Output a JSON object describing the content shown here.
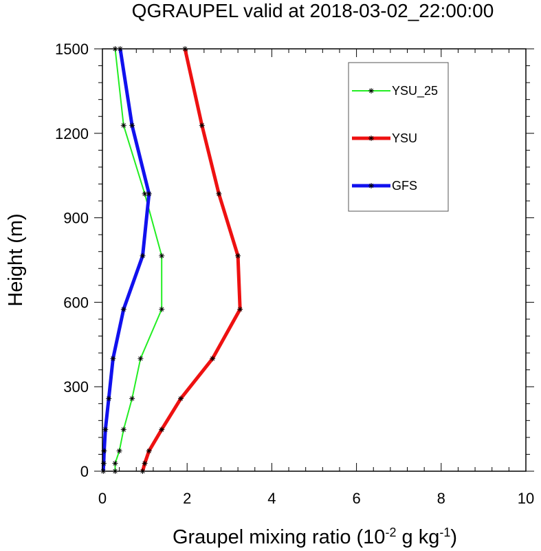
{
  "chart_data": {
    "type": "line",
    "title": "QGRAUPEL valid at 2018-03-02_22:00:00",
    "xlabel_main": "Graupel mixing ratio (10",
    "xlabel_exp1": "-2",
    "xlabel_mid": " g kg",
    "xlabel_exp2": "-1",
    "xlabel_end": ")",
    "ylabel": "Height (m)",
    "xlim": [
      0,
      10
    ],
    "ylim": [
      0,
      1500
    ],
    "x_ticks": [
      0,
      2,
      4,
      6,
      8,
      10
    ],
    "x_tick_labels": [
      "0",
      "2",
      "4",
      "6",
      "8",
      "10"
    ],
    "y_ticks": [
      0,
      300,
      600,
      900,
      1200,
      1500
    ],
    "y_tick_labels": [
      "0",
      "300",
      "600",
      "900",
      "1200",
      "1500"
    ],
    "legend_position": "top-right",
    "series": [
      {
        "name": "YSU_25",
        "color": "#22ee22",
        "width": 2,
        "x": [
          0.3,
          0.3,
          0.4,
          0.5,
          0.7,
          0.9,
          1.4,
          1.4,
          1.0,
          0.5,
          0.3
        ],
        "y": [
          0,
          28,
          72,
          148,
          258,
          400,
          575,
          765,
          985,
          1228,
          1500
        ]
      },
      {
        "name": "YSU",
        "color": "#ee1111",
        "width": 5,
        "x": [
          0.95,
          1.0,
          1.1,
          1.4,
          1.85,
          2.6,
          3.25,
          3.2,
          2.75,
          2.35,
          1.95
        ],
        "y": [
          0,
          28,
          72,
          148,
          258,
          400,
          575,
          765,
          985,
          1228,
          1500
        ]
      },
      {
        "name": "GFS",
        "color": "#1111ee",
        "width": 5,
        "x": [
          0.02,
          0.03,
          0.04,
          0.07,
          0.15,
          0.25,
          0.5,
          0.95,
          1.1,
          0.7,
          0.42
        ],
        "y": [
          0,
          28,
          72,
          148,
          258,
          400,
          575,
          765,
          985,
          1228,
          1500
        ]
      }
    ]
  }
}
